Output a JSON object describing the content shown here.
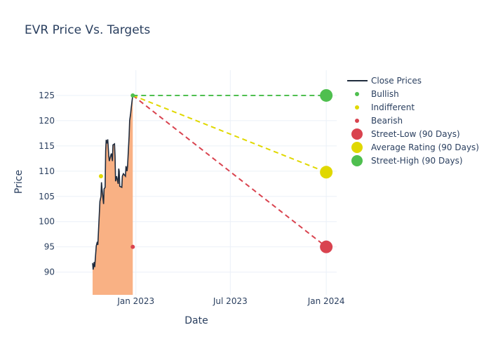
{
  "chart_data": {
    "type": "line",
    "title": "EVR Price Vs. Targets",
    "xlabel": "Date",
    "ylabel": "Price",
    "ylim": [
      85.5,
      130
    ],
    "xlim": [
      "2022-08-01",
      "2024-01-21"
    ],
    "y_ticks": [
      90,
      95,
      100,
      105,
      110,
      115,
      120,
      125
    ],
    "x_ticks": [
      {
        "date": "2023-01-01",
        "label": "Jan 2023"
      },
      {
        "date": "2023-07-01",
        "label": "Jul 2023"
      },
      {
        "date": "2024-01-01",
        "label": "Jan 2024"
      }
    ],
    "close_prices": {
      "name": "Close Prices",
      "color": "#1f2b3d",
      "fill_color": "#f9b184",
      "points": [
        [
          "2022-10-10",
          91.8
        ],
        [
          "2022-10-11",
          90.5
        ],
        [
          "2022-10-12",
          91.2
        ],
        [
          "2022-10-13",
          92.0
        ],
        [
          "2022-10-14",
          91.0
        ],
        [
          "2022-10-17",
          95.2
        ],
        [
          "2022-10-19",
          96.0
        ],
        [
          "2022-10-20",
          95.4
        ],
        [
          "2022-10-24",
          104.0
        ],
        [
          "2022-10-26",
          105.0
        ],
        [
          "2022-10-27",
          107.8
        ],
        [
          "2022-10-28",
          106.5
        ],
        [
          "2022-10-31",
          103.5
        ],
        [
          "2022-11-01",
          106.5
        ],
        [
          "2022-11-03",
          106.8
        ],
        [
          "2022-11-04",
          114.0
        ],
        [
          "2022-11-05",
          116.2
        ],
        [
          "2022-11-07",
          115.5
        ],
        [
          "2022-11-08",
          116.3
        ],
        [
          "2022-11-10",
          113.0
        ],
        [
          "2022-11-11",
          112.0
        ],
        [
          "2022-11-14",
          113.2
        ],
        [
          "2022-11-15",
          113.5
        ],
        [
          "2022-11-17",
          112.0
        ],
        [
          "2022-11-18",
          115.2
        ],
        [
          "2022-11-21",
          115.4
        ],
        [
          "2022-11-22",
          113.0
        ],
        [
          "2022-11-23",
          108.0
        ],
        [
          "2022-11-25",
          109.0
        ],
        [
          "2022-11-28",
          107.5
        ],
        [
          "2022-11-29",
          110.5
        ],
        [
          "2022-11-30",
          110.0
        ],
        [
          "2022-12-01",
          107.0
        ],
        [
          "2022-12-05",
          106.8
        ],
        [
          "2022-12-06",
          109.0
        ],
        [
          "2022-12-08",
          109.5
        ],
        [
          "2022-12-12",
          109.0
        ],
        [
          "2022-12-13",
          111.0
        ],
        [
          "2022-12-15",
          110.0
        ],
        [
          "2022-12-16",
          111.0
        ],
        [
          "2022-12-19",
          117.0
        ],
        [
          "2022-12-20",
          120.0
        ],
        [
          "2022-12-22",
          121.5
        ],
        [
          "2022-12-23",
          122.5
        ],
        [
          "2022-12-26",
          125.1
        ]
      ]
    },
    "analyst_ratings": [
      {
        "name": "Bullish",
        "color": "#4fbf4f",
        "points": [
          [
            "2022-12-26",
            125
          ]
        ]
      },
      {
        "name": "Indifferent",
        "color": "#e0d800",
        "points": [
          [
            "2022-10-26",
            109
          ]
        ]
      },
      {
        "name": "Bearish",
        "color": "#d9434f",
        "points": [
          [
            "2022-12-26",
            95
          ]
        ]
      }
    ],
    "targets": [
      {
        "name": "Street-Low (90 Days)",
        "color": "#d9434f",
        "start": [
          "2022-12-26",
          125
        ],
        "end": [
          "2024-01-01",
          95
        ]
      },
      {
        "name": "Average Rating (90 Days)",
        "color": "#e0d800",
        "start": [
          "2022-12-26",
          125
        ],
        "end": [
          "2024-01-01",
          109.8
        ]
      },
      {
        "name": "Street-High (90 Days)",
        "color": "#4fbf4f",
        "start": [
          "2022-12-26",
          125
        ],
        "end": [
          "2024-01-01",
          125
        ]
      }
    ],
    "legend": {
      "position": "top-right",
      "entries": [
        {
          "label": "Close Prices",
          "kind": "line",
          "color": "#1f2b3d"
        },
        {
          "label": "Bullish",
          "kind": "dot",
          "color": "#4fbf4f"
        },
        {
          "label": "Indifferent",
          "kind": "dot",
          "color": "#e0d800"
        },
        {
          "label": "Bearish",
          "kind": "dot",
          "color": "#d9434f"
        },
        {
          "label": "Street-Low (90 Days)",
          "kind": "circle",
          "color": "#d9434f"
        },
        {
          "label": "Average Rating (90 Days)",
          "kind": "circle",
          "color": "#e0d800"
        },
        {
          "label": "Street-High (90 Days)",
          "kind": "circle",
          "color": "#4fbf4f"
        }
      ]
    }
  }
}
